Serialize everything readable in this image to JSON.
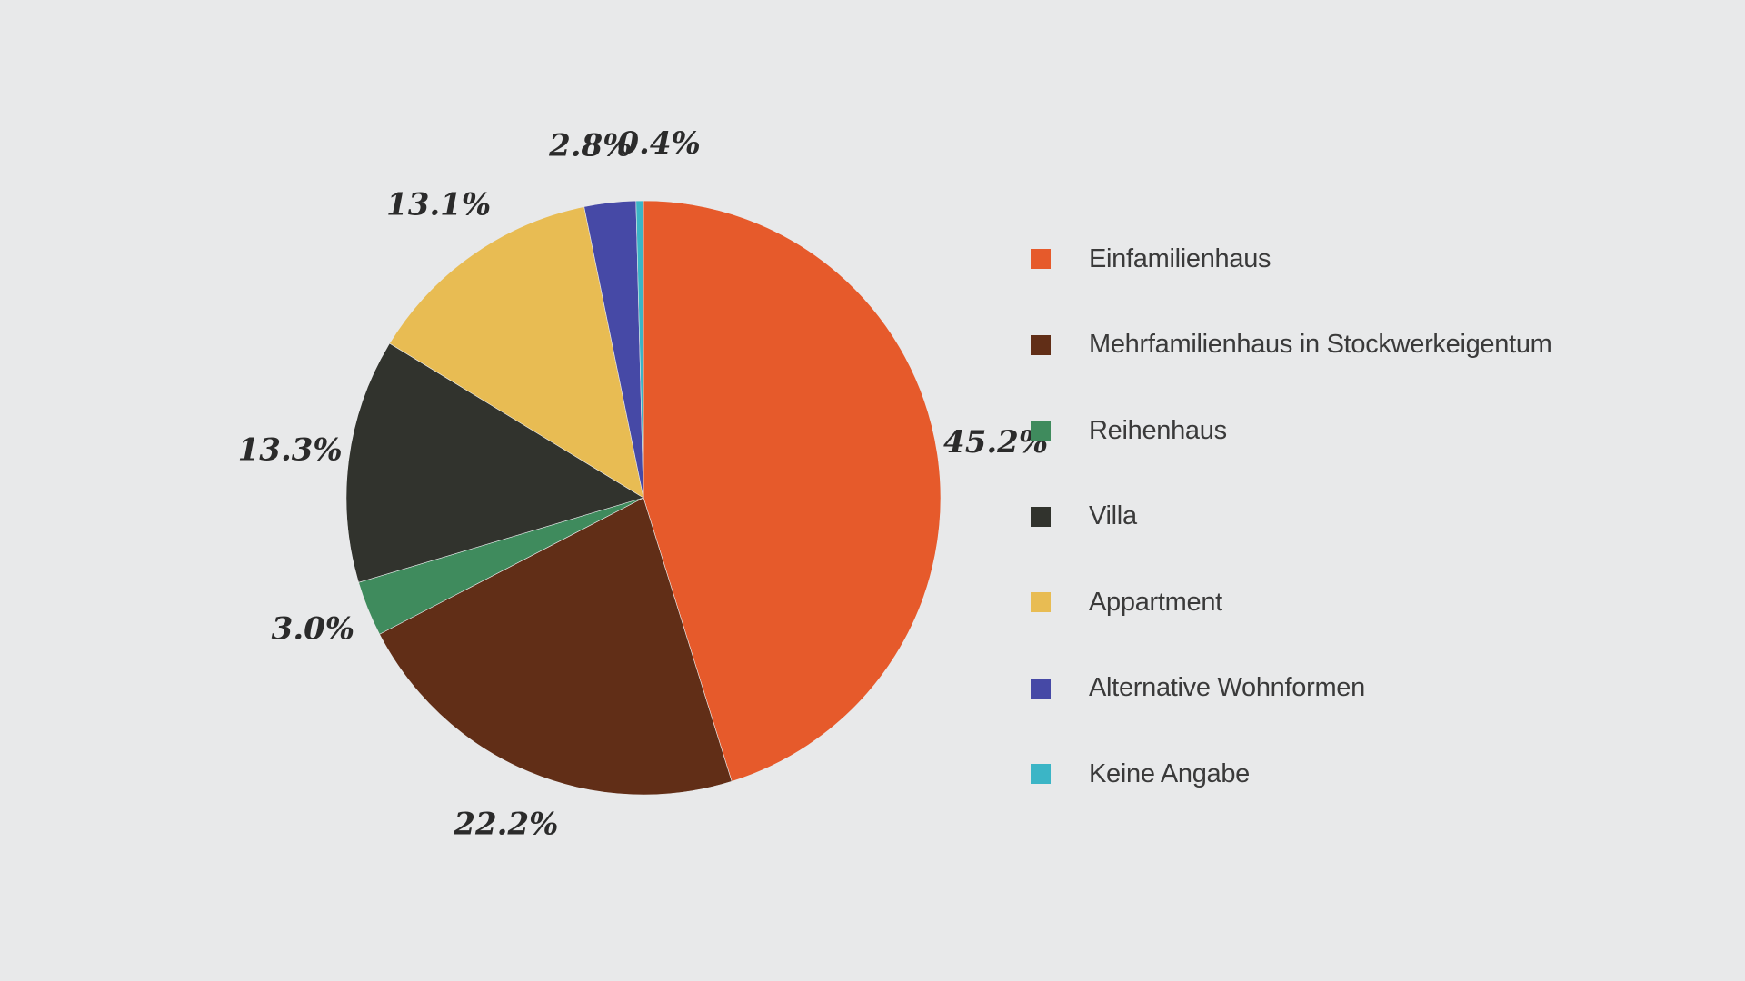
{
  "chart_data": {
    "type": "pie",
    "title": "",
    "legend_position": "right",
    "slices": [
      {
        "name": "Einfamilienhaus",
        "value": 45.2,
        "label": "45.2%",
        "color": "#e65a2b"
      },
      {
        "name": "Mehrfamilienhaus in Stockwerkeigentum",
        "value": 22.2,
        "label": "22.2%",
        "color": "#612e17"
      },
      {
        "name": "Reihenhaus",
        "value": 3.0,
        "label": "3.0%",
        "color": "#3f8b5d"
      },
      {
        "name": "Villa",
        "value": 13.3,
        "label": "13.3%",
        "color": "#31332d"
      },
      {
        "name": "Appartment",
        "value": 13.1,
        "label": "13.1%",
        "color": "#e8bc53"
      },
      {
        "name": "Alternative Wohnformen",
        "value": 2.8,
        "label": "2.8%",
        "color": "#4649a6"
      },
      {
        "name": "Keine Angabe",
        "value": 0.4,
        "label": "0.4%",
        "color": "#3bb5c6"
      }
    ]
  }
}
